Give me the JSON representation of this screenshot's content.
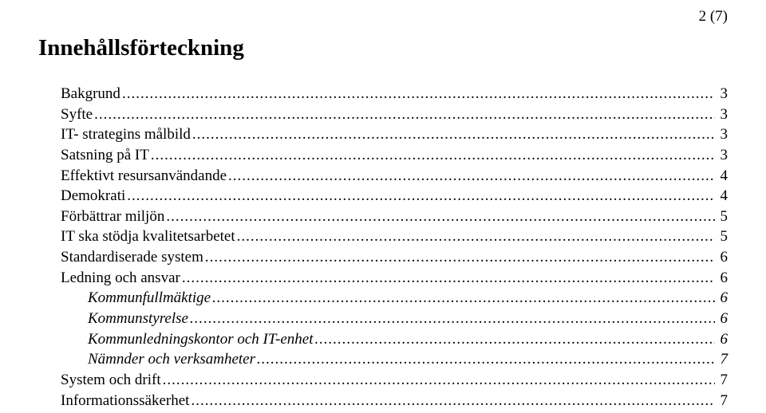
{
  "page_indicator": "2 (7)",
  "title": "Innehållsförteckning",
  "dot_leader": ".........................................................................................................................................................................................................................................................",
  "entries": [
    {
      "label": "Bakgrund",
      "page": "3",
      "level": 0,
      "italic": false
    },
    {
      "label": "Syfte",
      "page": "3",
      "level": 0,
      "italic": false
    },
    {
      "label": "IT- strategins målbild",
      "page": "3",
      "level": 0,
      "italic": false
    },
    {
      "label": "Satsning på IT",
      "page": "3",
      "level": 0,
      "italic": false
    },
    {
      "label": "Effektivt resursanvändande",
      "page": "4",
      "level": 0,
      "italic": false
    },
    {
      "label": "Demokrati",
      "page": "4",
      "level": 0,
      "italic": false
    },
    {
      "label": "Förbättrar miljön",
      "page": "5",
      "level": 0,
      "italic": false
    },
    {
      "label": "IT ska stödja kvalitetsarbetet",
      "page": "5",
      "level": 0,
      "italic": false
    },
    {
      "label": "Standardiserade system",
      "page": "6",
      "level": 0,
      "italic": false
    },
    {
      "label": "Ledning och ansvar",
      "page": "6",
      "level": 0,
      "italic": false
    },
    {
      "label": "Kommunfullmäktige",
      "page": "6",
      "level": 1,
      "italic": true
    },
    {
      "label": "Kommunstyrelse",
      "page": "6",
      "level": 1,
      "italic": true
    },
    {
      "label": "Kommunledningskontor och IT-enhet",
      "page": "6",
      "level": 1,
      "italic": true
    },
    {
      "label": "Nämnder och verksamheter",
      "page": "7",
      "level": 1,
      "italic": true
    },
    {
      "label": "System och drift",
      "page": "7",
      "level": 0,
      "italic": false
    },
    {
      "label": "Informationssäkerhet",
      "page": "7",
      "level": 0,
      "italic": false
    }
  ]
}
